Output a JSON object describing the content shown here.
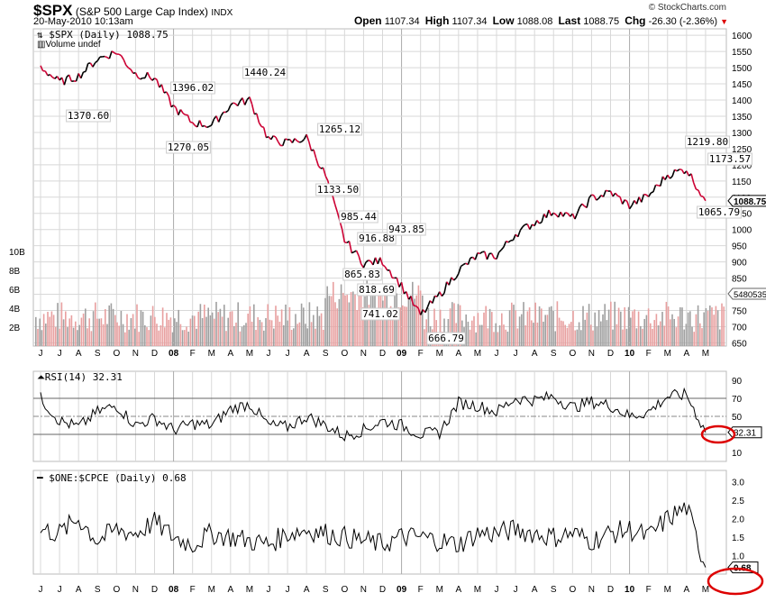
{
  "header": {
    "symbol": "$SPX",
    "name": "(S&P 500 Large Cap Index)",
    "exchange": "INDX",
    "datetime": "20-May-2010 10:13am",
    "brand": "© StockCharts.com",
    "open_label": "Open",
    "open": "1107.34",
    "high_label": "High",
    "high": "1107.34",
    "low_label": "Low",
    "low": "1088.08",
    "last_label": "Last",
    "last": "1088.75",
    "chg_label": "Chg",
    "chg": "-26.30 (-2.36%)",
    "chg_arrow": "▼"
  },
  "colors": {
    "up": "#000000",
    "down": "#cc0033",
    "volume_up": "#a0a0a0",
    "volume_down": "#e8a0a0",
    "grid": "#d8d8d8",
    "circle": "#dd0000"
  },
  "chart_data": [
    {
      "type": "line",
      "title": "$SPX (Daily) 1088.75",
      "subtitle": "Volume undef",
      "legend": [
        "$SPX (Daily) 1088.75",
        "Volume undef"
      ],
      "xlabel": "",
      "ylabel": "",
      "ylim": [
        640,
        1620
      ],
      "y_ticks": [
        1600,
        1550,
        1500,
        1450,
        1400,
        1350,
        1300,
        1250,
        1200,
        1150,
        1100,
        1050,
        1000,
        950,
        900,
        850,
        800,
        750,
        700,
        650
      ],
      "volume_ticks": [
        "2B",
        "4B",
        "6B",
        "8B",
        "10B"
      ],
      "x_tick_labels": [
        "J",
        "J",
        "A",
        "S",
        "O",
        "N",
        "D",
        "08",
        "F",
        "M",
        "A",
        "M",
        "J",
        "J",
        "A",
        "S",
        "O",
        "N",
        "D",
        "09",
        "F",
        "M",
        "A",
        "M",
        "J",
        "J",
        "A",
        "S",
        "O",
        "N",
        "D",
        "10",
        "F",
        "M",
        "A",
        "M"
      ],
      "last_value_tag": "1088.75",
      "volume_tag": "5480535",
      "annotations": [
        {
          "label": "1370.60",
          "value": 1370.6,
          "date": "2007-08"
        },
        {
          "label": "1396.02",
          "value": 1396.02,
          "date": "2008-01"
        },
        {
          "label": "1270.05",
          "value": 1270.05,
          "date": "2008-01"
        },
        {
          "label": "1440.24",
          "value": 1440.24,
          "date": "2008-05"
        },
        {
          "label": "1265.12",
          "value": 1265.12,
          "date": "2008-09"
        },
        {
          "label": "1133.50",
          "value": 1133.5,
          "date": "2008-09"
        },
        {
          "label": "985.44",
          "value": 985.44,
          "date": "2008-10"
        },
        {
          "label": "916.88",
          "value": 916.88,
          "date": "2008-11"
        },
        {
          "label": "865.83",
          "value": 865.83,
          "date": "2008-10"
        },
        {
          "label": "818.69",
          "value": 818.69,
          "date": "2008-11"
        },
        {
          "label": "741.02",
          "value": 741.02,
          "date": "2008-11"
        },
        {
          "label": "943.85",
          "value": 943.85,
          "date": "2009-01"
        },
        {
          "label": "666.79",
          "value": 666.79,
          "date": "2009-03"
        },
        {
          "label": "1219.80",
          "value": 1219.8,
          "date": "2010-04"
        },
        {
          "label": "1173.57",
          "value": 1173.57,
          "date": "2010-05"
        },
        {
          "label": "1065.79",
          "value": 1065.79,
          "date": "2010-05"
        }
      ],
      "series": [
        {
          "name": "$SPX close (approx. monthly)",
          "x": [
            "2007-06",
            "2007-07",
            "2007-08",
            "2007-09",
            "2007-10",
            "2007-11",
            "2007-12",
            "2008-01",
            "2008-02",
            "2008-03",
            "2008-04",
            "2008-05",
            "2008-06",
            "2008-07",
            "2008-08",
            "2008-09",
            "2008-10",
            "2008-11",
            "2008-12",
            "2009-01",
            "2009-02",
            "2009-03",
            "2009-04",
            "2009-05",
            "2009-06",
            "2009-07",
            "2009-08",
            "2009-09",
            "2009-10",
            "2009-11",
            "2009-12",
            "2010-01",
            "2010-02",
            "2010-03",
            "2010-04",
            "2010-05"
          ],
          "values": [
            1503,
            1455,
            1474,
            1527,
            1549,
            1481,
            1468,
            1378,
            1330,
            1322,
            1385,
            1400,
            1280,
            1267,
            1283,
            1166,
            968,
            896,
            903,
            826,
            735,
            798,
            873,
            919,
            919,
            987,
            1021,
            1057,
            1036,
            1096,
            1115,
            1074,
            1104,
            1169,
            1187,
            1089
          ]
        }
      ]
    },
    {
      "type": "line",
      "title": "RSI(14) 32.31",
      "ylim": [
        0,
        100
      ],
      "y_ticks": [
        90,
        70,
        50,
        30,
        10
      ],
      "reference_lines": [
        70,
        50,
        30
      ],
      "last_value_tag": "32.31",
      "series": [
        {
          "name": "RSI(14)",
          "values": [
            70,
            45,
            38,
            55,
            62,
            40,
            48,
            35,
            42,
            40,
            58,
            64,
            40,
            38,
            50,
            40,
            28,
            35,
            45,
            40,
            30,
            32,
            65,
            62,
            55,
            70,
            68,
            72,
            60,
            66,
            62,
            50,
            55,
            72,
            74,
            32.31
          ]
        }
      ]
    },
    {
      "type": "line",
      "title": "$ONE:$CPCE (Daily) 0.68",
      "ylim": [
        0.5,
        3.3
      ],
      "y_ticks": [
        "3.0",
        "2.5",
        "2.0",
        "1.5",
        "1.0"
      ],
      "last_value_tag": "0.68",
      "series": [
        {
          "name": "$ONE:$CPCE",
          "values": [
            1.7,
            1.6,
            2.0,
            1.4,
            1.7,
            1.6,
            1.9,
            1.5,
            1.3,
            1.6,
            1.5,
            1.4,
            1.3,
            1.6,
            1.7,
            1.6,
            1.5,
            1.4,
            1.3,
            1.5,
            1.5,
            1.4,
            1.3,
            1.6,
            1.6,
            1.7,
            1.6,
            1.5,
            1.6,
            1.4,
            1.6,
            1.7,
            1.5,
            2.0,
            2.3,
            0.68
          ]
        }
      ]
    }
  ]
}
